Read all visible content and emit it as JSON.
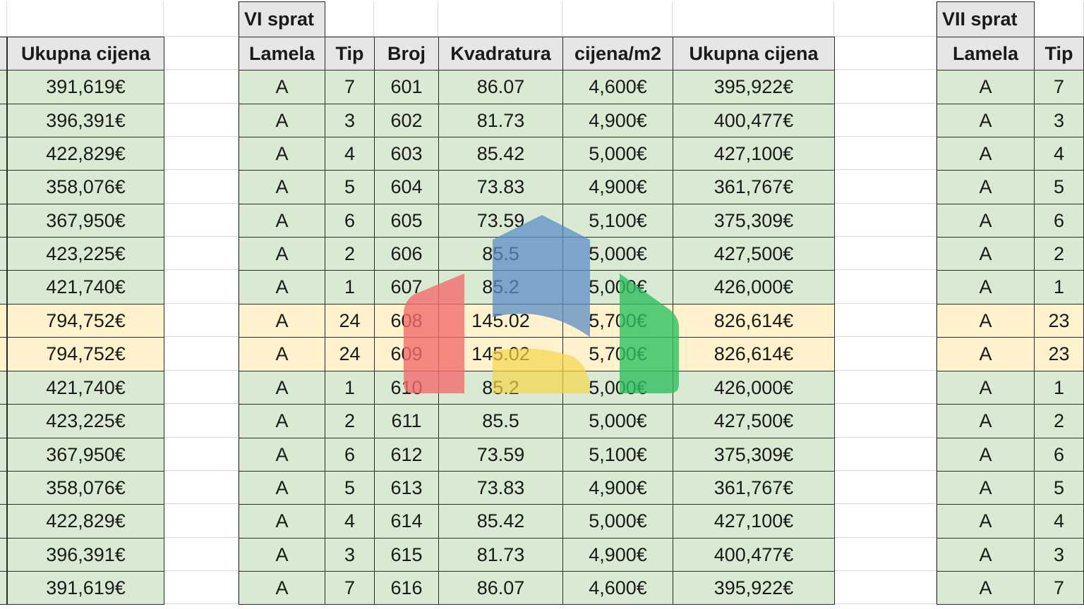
{
  "left_block": {
    "header": "Ukupna cijena",
    "rows": [
      "391,619€",
      "396,391€",
      "422,829€",
      "358,076€",
      "367,950€",
      "423,225€",
      "421,740€",
      "794,752€",
      "794,752€",
      "421,740€",
      "423,225€",
      "367,950€",
      "358,076€",
      "422,829€",
      "396,391€",
      "391,619€"
    ]
  },
  "floor6": {
    "title": "VI sprat",
    "headers": [
      "Lamela",
      "Tip",
      "Broj",
      "Kvadratura",
      "cijena/m2",
      "Ukupna cijena"
    ],
    "rows": [
      [
        "A",
        "7",
        "601",
        "86.07",
        "4,600€",
        "395,922€"
      ],
      [
        "A",
        "3",
        "602",
        "81.73",
        "4,900€",
        "400,477€"
      ],
      [
        "A",
        "4",
        "603",
        "85.42",
        "5,000€",
        "427,100€"
      ],
      [
        "A",
        "5",
        "604",
        "73.83",
        "4,900€",
        "361,767€"
      ],
      [
        "A",
        "6",
        "605",
        "73.59",
        "5,100€",
        "375,309€"
      ],
      [
        "A",
        "2",
        "606",
        "85.5",
        "5,000€",
        "427,500€"
      ],
      [
        "A",
        "1",
        "607",
        "85.2",
        "5,000€",
        "426,000€"
      ],
      [
        "A",
        "24",
        "608",
        "145.02",
        "5,700€",
        "826,614€"
      ],
      [
        "A",
        "24",
        "609",
        "145.02",
        "5,700€",
        "826,614€"
      ],
      [
        "A",
        "1",
        "610",
        "85.2",
        "5,000€",
        "426,000€"
      ],
      [
        "A",
        "2",
        "611",
        "85.5",
        "5,000€",
        "427,500€"
      ],
      [
        "A",
        "6",
        "612",
        "73.59",
        "5,100€",
        "375,309€"
      ],
      [
        "A",
        "5",
        "613",
        "73.83",
        "4,900€",
        "361,767€"
      ],
      [
        "A",
        "4",
        "614",
        "85.42",
        "5,000€",
        "427,100€"
      ],
      [
        "A",
        "3",
        "615",
        "81.73",
        "4,900€",
        "400,477€"
      ],
      [
        "A",
        "7",
        "616",
        "86.07",
        "4,600€",
        "395,922€"
      ]
    ]
  },
  "floor7": {
    "title": "VII sprat",
    "headers": [
      "Lamela",
      "Tip"
    ],
    "rows": [
      [
        "A",
        "7"
      ],
      [
        "A",
        "3"
      ],
      [
        "A",
        "4"
      ],
      [
        "A",
        "5"
      ],
      [
        "A",
        "6"
      ],
      [
        "A",
        "2"
      ],
      [
        "A",
        "1"
      ],
      [
        "A",
        "23"
      ],
      [
        "A",
        "23"
      ],
      [
        "A",
        "1"
      ],
      [
        "A",
        "2"
      ],
      [
        "A",
        "6"
      ],
      [
        "A",
        "5"
      ],
      [
        "A",
        "4"
      ],
      [
        "A",
        "3"
      ],
      [
        "A",
        "7"
      ]
    ]
  },
  "highlighted_rows": [
    7,
    8
  ],
  "colors": {
    "row_fill": "#d9ead3",
    "highlight_fill": "#fff2cc",
    "header_fill": "#e6e6e6",
    "logo_red": "#f26b6b",
    "logo_blue": "#5b8ec6",
    "logo_yellow": "#f5d44a",
    "logo_green": "#2fbf5f"
  },
  "logo": {
    "icon": "house-logo-watermark"
  }
}
